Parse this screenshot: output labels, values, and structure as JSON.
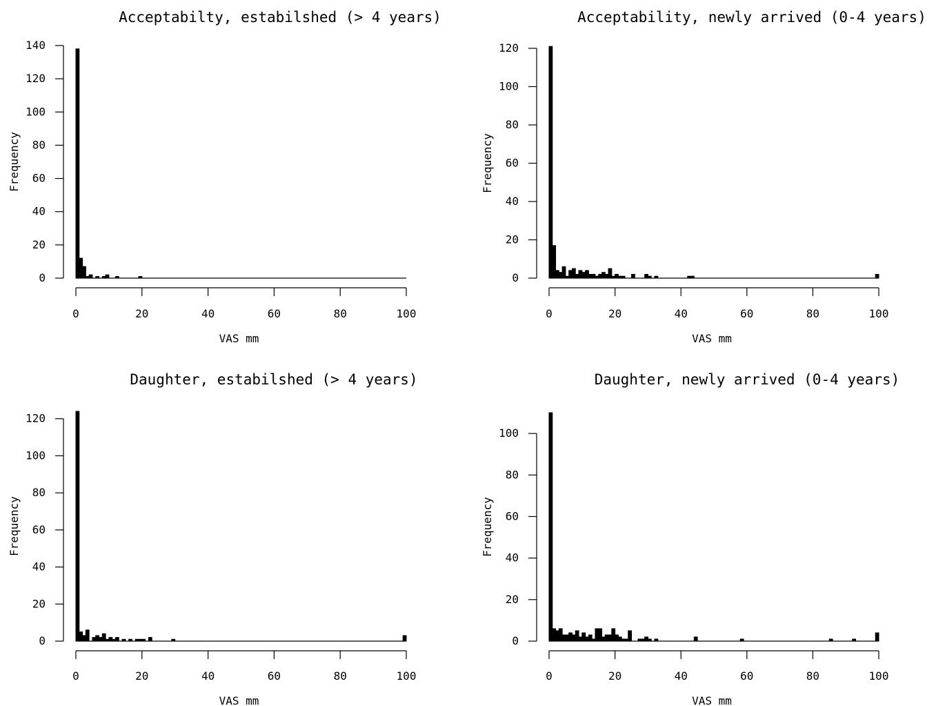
{
  "chart_data": [
    {
      "type": "bar",
      "title": "Acceptabilty, estabilshed (> 4 years)",
      "xlabel": "VAS mm",
      "ylabel": "Frequency",
      "xlim": [
        0,
        100
      ],
      "ylim": [
        0,
        140
      ],
      "xticks": [
        0,
        20,
        40,
        60,
        80,
        100
      ],
      "yticks": [
        0,
        20,
        40,
        60,
        80,
        100,
        120,
        140
      ],
      "bin_width": 1,
      "grid": false,
      "bars": [
        [
          0,
          138
        ],
        [
          1,
          12
        ],
        [
          2,
          7
        ],
        [
          3,
          1
        ],
        [
          4,
          2
        ],
        [
          5,
          0
        ],
        [
          6,
          1
        ],
        [
          7,
          0
        ],
        [
          8,
          1
        ],
        [
          9,
          2
        ],
        [
          10,
          0
        ],
        [
          11,
          0
        ],
        [
          12,
          1
        ],
        [
          13,
          0
        ],
        [
          18,
          0
        ],
        [
          19,
          1
        ]
      ]
    },
    {
      "type": "bar",
      "title": "Acceptability, newly arrived (0-4 years)",
      "xlabel": "VAS mm",
      "ylabel": "Frequency",
      "xlim": [
        0,
        100
      ],
      "ylim": [
        0,
        120
      ],
      "xticks": [
        0,
        20,
        40,
        60,
        80,
        100
      ],
      "yticks": [
        0,
        20,
        40,
        60,
        80,
        100,
        120
      ],
      "bin_width": 1,
      "grid": false,
      "bars": [
        [
          0,
          121
        ],
        [
          1,
          17
        ],
        [
          2,
          4
        ],
        [
          3,
          3
        ],
        [
          4,
          6
        ],
        [
          5,
          1
        ],
        [
          6,
          4
        ],
        [
          7,
          5
        ],
        [
          8,
          2
        ],
        [
          9,
          4
        ],
        [
          10,
          3
        ],
        [
          11,
          4
        ],
        [
          12,
          2
        ],
        [
          13,
          2
        ],
        [
          14,
          1
        ],
        [
          15,
          2
        ],
        [
          16,
          3
        ],
        [
          17,
          2
        ],
        [
          18,
          5
        ],
        [
          19,
          1
        ],
        [
          20,
          2
        ],
        [
          21,
          1
        ],
        [
          22,
          1
        ],
        [
          25,
          2
        ],
        [
          29,
          2
        ],
        [
          30,
          1
        ],
        [
          32,
          1
        ],
        [
          42,
          1
        ],
        [
          43,
          1
        ],
        [
          99,
          2
        ]
      ]
    },
    {
      "type": "bar",
      "title": "Daughter, estabilshed (> 4 years)",
      "xlabel": "VAS mm",
      "ylabel": "Frequency",
      "xlim": [
        0,
        100
      ],
      "ylim": [
        0,
        124
      ],
      "xticks": [
        0,
        20,
        40,
        60,
        80,
        100
      ],
      "yticks": [
        0,
        20,
        40,
        60,
        80,
        100,
        120
      ],
      "bin_width": 1,
      "grid": false,
      "bars": [
        [
          0,
          124
        ],
        [
          1,
          5
        ],
        [
          2,
          3
        ],
        [
          3,
          6
        ],
        [
          4,
          0
        ],
        [
          5,
          2
        ],
        [
          6,
          3
        ],
        [
          7,
          2
        ],
        [
          8,
          4
        ],
        [
          9,
          1
        ],
        [
          10,
          2
        ],
        [
          11,
          1
        ],
        [
          12,
          2
        ],
        [
          13,
          0
        ],
        [
          14,
          1
        ],
        [
          15,
          0
        ],
        [
          16,
          1
        ],
        [
          18,
          1
        ],
        [
          19,
          1
        ],
        [
          20,
          1
        ],
        [
          22,
          2
        ],
        [
          29,
          1
        ],
        [
          99,
          3
        ]
      ]
    },
    {
      "type": "bar",
      "title": "Daughter, newly arrived (0-4 years)",
      "xlabel": "VAS mm",
      "ylabel": "Frequency",
      "xlim": [
        0,
        100
      ],
      "ylim": [
        0,
        110
      ],
      "xticks": [
        0,
        20,
        40,
        60,
        80,
        100
      ],
      "yticks": [
        0,
        20,
        40,
        60,
        80,
        100
      ],
      "bin_width": 1,
      "grid": false,
      "bars": [
        [
          0,
          110
        ],
        [
          1,
          6
        ],
        [
          2,
          5
        ],
        [
          3,
          6
        ],
        [
          4,
          3
        ],
        [
          5,
          3
        ],
        [
          6,
          4
        ],
        [
          7,
          3
        ],
        [
          8,
          5
        ],
        [
          9,
          2
        ],
        [
          10,
          4
        ],
        [
          11,
          2
        ],
        [
          12,
          3
        ],
        [
          13,
          1
        ],
        [
          14,
          6
        ],
        [
          15,
          6
        ],
        [
          16,
          2
        ],
        [
          17,
          3
        ],
        [
          18,
          3
        ],
        [
          19,
          6
        ],
        [
          20,
          3
        ],
        [
          21,
          2
        ],
        [
          22,
          1
        ],
        [
          23,
          1
        ],
        [
          24,
          5
        ],
        [
          27,
          1
        ],
        [
          28,
          1
        ],
        [
          29,
          2
        ],
        [
          30,
          1
        ],
        [
          32,
          1
        ],
        [
          44,
          2
        ],
        [
          58,
          1
        ],
        [
          85,
          1
        ],
        [
          92,
          1
        ],
        [
          99,
          4
        ]
      ]
    }
  ]
}
